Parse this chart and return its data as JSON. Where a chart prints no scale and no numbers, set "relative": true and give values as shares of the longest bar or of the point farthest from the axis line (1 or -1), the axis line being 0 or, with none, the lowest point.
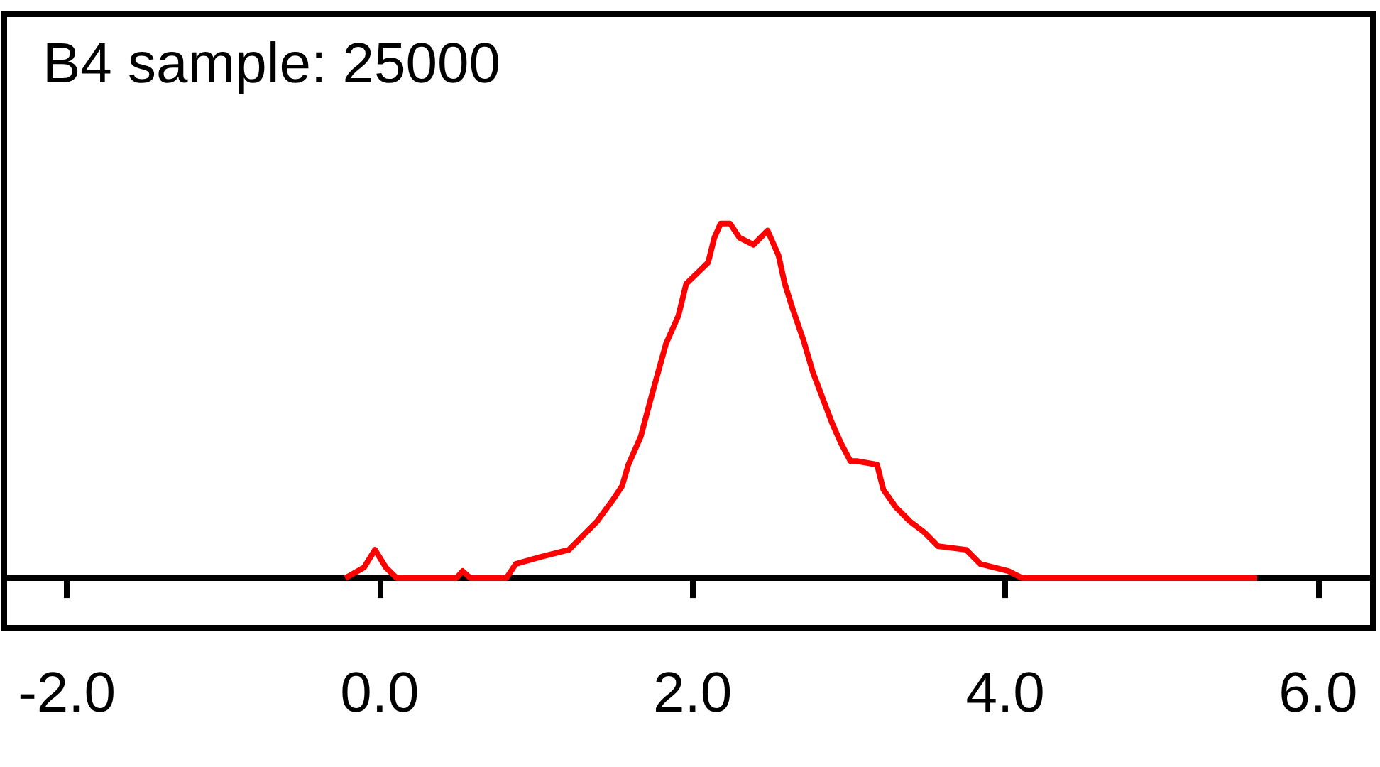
{
  "chart_data": {
    "type": "line",
    "title": "B4 sample: 25000",
    "relative": true,
    "marker": "none",
    "grid": false,
    "xlim": [
      -2.4,
      6.35
    ],
    "xticks": [
      {
        "value": -2,
        "label": "-2.0"
      },
      {
        "value": 0,
        "label": "0.0"
      },
      {
        "value": 2,
        "label": "2.0"
      },
      {
        "value": 4,
        "label": "4.0"
      },
      {
        "value": 6,
        "label": "6.0"
      }
    ],
    "series": [
      {
        "color": "#ff0000",
        "x": [
          -0.22,
          -0.1,
          -0.03,
          0.04,
          0.11,
          0.49,
          0.53,
          0.58,
          0.81,
          0.87,
          1.03,
          1.21,
          1.3,
          1.39,
          1.49,
          1.55,
          1.59,
          1.67,
          1.73,
          1.78,
          1.83,
          1.91,
          1.96,
          2.03,
          2.1,
          2.14,
          2.18,
          2.24,
          2.3,
          2.39,
          2.48,
          2.55,
          2.59,
          2.64,
          2.71,
          2.77,
          2.83,
          2.89,
          2.95,
          3.01,
          3.05,
          3.18,
          3.22,
          3.3,
          3.39,
          3.48,
          3.57,
          3.75,
          3.84,
          4.02,
          4.11,
          5.61
        ],
        "values": [
          0,
          0.03,
          0.08,
          0.03,
          0,
          0,
          0.02,
          0,
          0,
          0.04,
          0.06,
          0.08,
          0.12,
          0.16,
          0.22,
          0.26,
          0.32,
          0.4,
          0.5,
          0.58,
          0.66,
          0.74,
          0.83,
          0.86,
          0.89,
          0.96,
          1,
          1,
          0.96,
          0.94,
          0.98,
          0.91,
          0.83,
          0.76,
          0.67,
          0.58,
          0.51,
          0.44,
          0.38,
          0.33,
          0.33,
          0.32,
          0.25,
          0.2,
          0.16,
          0.13,
          0.09,
          0.08,
          0.04,
          0.02,
          0,
          0
        ]
      }
    ]
  }
}
